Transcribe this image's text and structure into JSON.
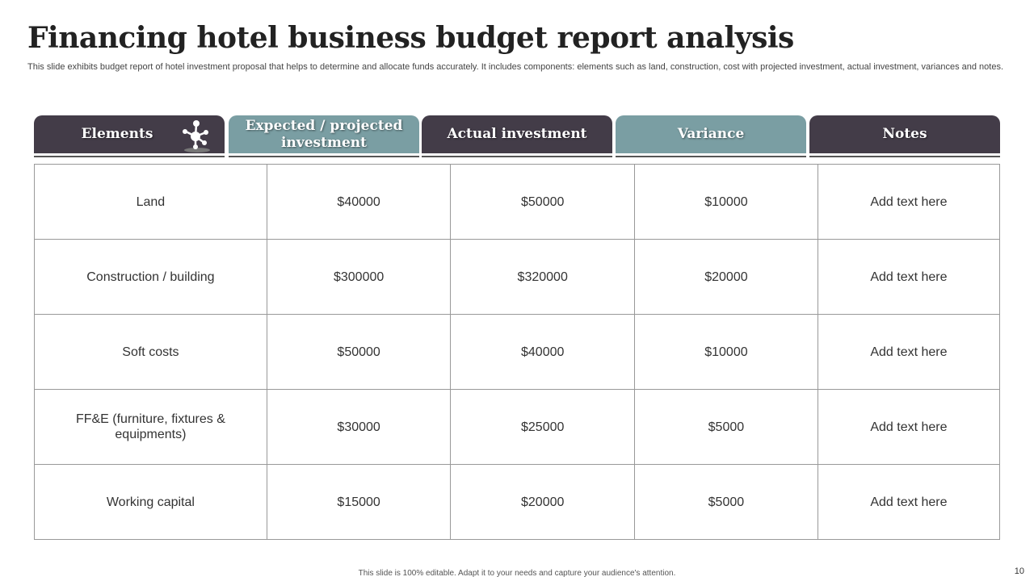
{
  "title": "Financing hotel business budget report analysis",
  "description": "This slide exhibits budget report of hotel investment proposal that helps to determine and allocate funds accurately. It includes components: elements such as land, construction, cost with projected investment, actual investment, variances and notes.",
  "colors": {
    "dark_header": "#433c48",
    "teal_header": "#7a9ea3"
  },
  "table": {
    "headers": [
      "Elements",
      "Expected / projected investment",
      "Actual investment",
      "Variance",
      "Notes"
    ],
    "header_icon": "molecule-network-icon",
    "rows": [
      [
        "Land",
        "$40000",
        "$50000",
        "$10000",
        "Add text here"
      ],
      [
        "Construction  / building",
        "$300000",
        "$320000",
        "$20000",
        "Add text here"
      ],
      [
        "Soft costs",
        "$50000",
        "$40000",
        "$10000",
        "Add text here"
      ],
      [
        "FF&E (furniture,  fixtures & equipments)",
        "$30000",
        "$25000",
        "$5000",
        "Add text here"
      ],
      [
        "Working capital",
        "$15000",
        "$20000",
        "$5000",
        "Add text here"
      ]
    ]
  },
  "footer": "This slide is 100% editable.  Adapt it to your needs and capture your audience's attention.",
  "page_number": "10"
}
